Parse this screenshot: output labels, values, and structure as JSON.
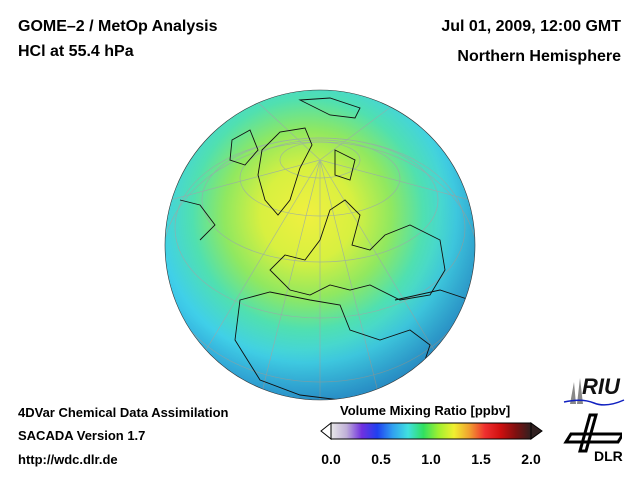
{
  "header": {
    "title_line1": "GOME–2 / MetOp Analysis",
    "title_line2": "HCl at 55.4 hPa",
    "datetime": "Jul 01, 2009, 12:00 GMT",
    "region": "Northern Hemisphere"
  },
  "footer": {
    "line1": "4DVar Chemical Data Assimilation",
    "line2": "SACADA Version 1.7",
    "url": "http://wdc.dlr.de"
  },
  "colorbar": {
    "label": "Volume Mixing Ratio [ppbv]",
    "ticks": [
      "0.0",
      "0.5",
      "1.0",
      "1.5",
      "2.0"
    ],
    "range": [
      0.0,
      2.0
    ],
    "colors": [
      "#e8e8e8",
      "#c0b0d8",
      "#7030e0",
      "#2040f0",
      "#30a0f0",
      "#40e0e0",
      "#30e060",
      "#a0f030",
      "#f0f030",
      "#f0a030",
      "#f03030",
      "#d01010",
      "#801010",
      "#302020"
    ]
  },
  "logos": {
    "riu": "RIU",
    "dlr": "DLR"
  }
}
